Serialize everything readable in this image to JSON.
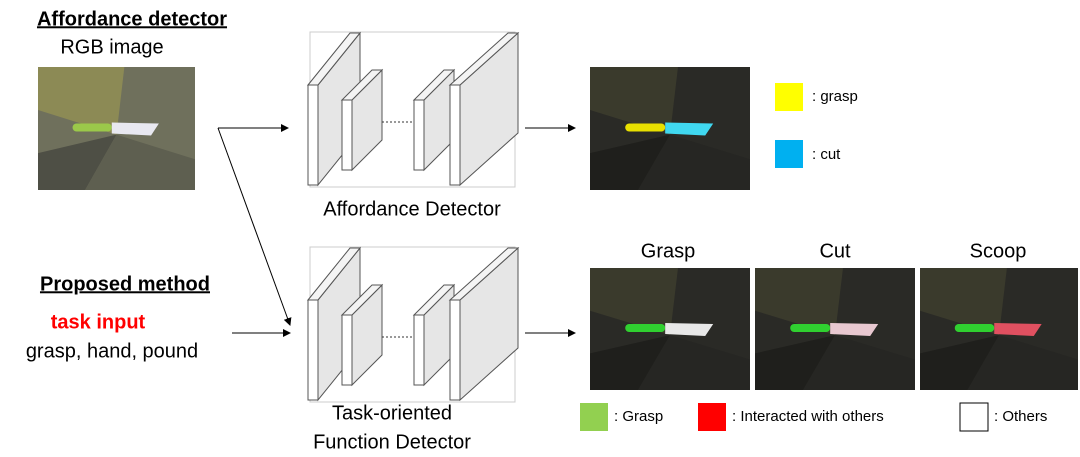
{
  "top": {
    "title": "Affordance detector",
    "input_label": "RGB image",
    "network_label": "Affordance Detector",
    "legend": [
      ": grasp",
      ": cut"
    ]
  },
  "bottom": {
    "title": "Proposed method",
    "task_label": "task input",
    "tasks": "grasp, hand, pound",
    "network_label": [
      "Task-oriented",
      "Function Detector"
    ],
    "outputs": [
      "Grasp",
      "Cut",
      "Scoop"
    ],
    "legend": [
      ": Grasp",
      ": Interacted with others",
      ": Others"
    ]
  }
}
